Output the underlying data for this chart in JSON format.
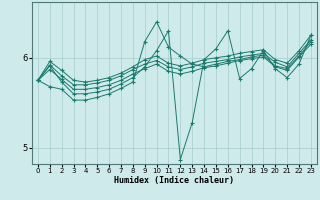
{
  "xlabel": "Humidex (Indice chaleur)",
  "bg_color": "#ceeaea",
  "grid_color": "#a8cccc",
  "line_color": "#1a7a6e",
  "xlim": [
    -0.5,
    23.5
  ],
  "ylim": [
    4.82,
    6.62
  ],
  "yticks": [
    5,
    6
  ],
  "xticks": [
    0,
    1,
    2,
    3,
    4,
    5,
    6,
    7,
    8,
    9,
    10,
    11,
    12,
    13,
    14,
    15,
    16,
    17,
    18,
    19,
    20,
    21,
    22,
    23
  ],
  "lines": [
    [
      5.75,
      5.92,
      5.8,
      5.7,
      5.7,
      5.72,
      5.75,
      5.8,
      5.87,
      5.93,
      5.97,
      5.9,
      5.87,
      5.9,
      5.94,
      5.96,
      5.98,
      6.01,
      6.03,
      6.05,
      5.95,
      5.9,
      6.05,
      6.2
    ],
    [
      5.75,
      5.87,
      5.76,
      5.65,
      5.65,
      5.67,
      5.7,
      5.75,
      5.82,
      5.88,
      5.93,
      5.85,
      5.82,
      5.85,
      5.89,
      5.91,
      5.94,
      5.97,
      5.99,
      6.01,
      5.9,
      5.86,
      6.01,
      6.15
    ],
    [
      5.75,
      5.96,
      5.86,
      5.75,
      5.73,
      5.75,
      5.78,
      5.83,
      5.9,
      5.98,
      6.02,
      5.94,
      5.91,
      5.94,
      5.98,
      6.0,
      6.02,
      6.05,
      6.07,
      6.09,
      5.98,
      5.94,
      6.08,
      6.25
    ],
    [
      5.75,
      5.91,
      5.73,
      5.6,
      5.6,
      5.62,
      5.65,
      5.71,
      5.78,
      5.9,
      6.08,
      6.3,
      4.87,
      5.28,
      5.98,
      6.1,
      6.3,
      5.77,
      5.88,
      6.08,
      5.88,
      5.78,
      5.93,
      6.25
    ],
    [
      5.75,
      5.68,
      5.65,
      5.53,
      5.53,
      5.56,
      5.6,
      5.66,
      5.73,
      6.18,
      6.4,
      6.12,
      6.02,
      5.93,
      5.9,
      5.93,
      5.96,
      5.98,
      6.01,
      6.03,
      5.91,
      5.88,
      6.02,
      6.18
    ]
  ]
}
